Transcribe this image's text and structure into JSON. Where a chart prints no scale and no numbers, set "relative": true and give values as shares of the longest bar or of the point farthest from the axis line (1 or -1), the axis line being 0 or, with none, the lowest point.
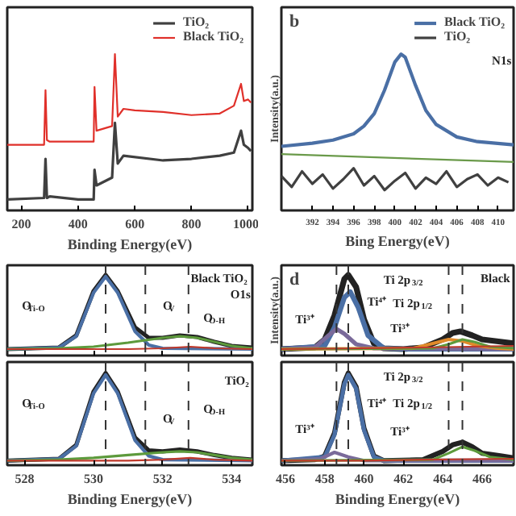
{
  "chart_data": [
    {
      "type": "line",
      "relative": true,
      "xlabel": "Binding Energy(eV)",
      "xlim": [
        150,
        1015
      ],
      "xticks": [
        200,
        400,
        600,
        800,
        1000
      ],
      "legend": "top right",
      "grid": false,
      "series": [
        {
          "name": "TiO₂",
          "color": "#404040",
          "x": [
            150,
            280,
            285,
            290,
            300,
            400,
            455,
            458,
            465,
            520,
            530,
            540,
            560,
            700,
            800,
            900,
            950,
            975,
            985,
            1000,
            1010
          ],
          "values": [
            0.07,
            0.08,
            0.33,
            0.08,
            0.09,
            0.07,
            0.07,
            0.26,
            0.16,
            0.21,
            0.56,
            0.3,
            0.35,
            0.32,
            0.33,
            0.35,
            0.37,
            0.51,
            0.42,
            0.4,
            0.38
          ]
        },
        {
          "name": "Black TiO₂",
          "color": "#e0302a",
          "x": [
            150,
            280,
            285,
            290,
            300,
            455,
            458,
            465,
            520,
            530,
            540,
            560,
            600,
            700,
            800,
            900,
            950,
            975,
            985,
            1000,
            1010
          ],
          "values": [
            0.42,
            0.42,
            0.77,
            0.45,
            0.44,
            0.44,
            0.79,
            0.51,
            0.54,
            1.0,
            0.6,
            0.65,
            0.64,
            0.63,
            0.61,
            0.62,
            0.67,
            0.81,
            0.7,
            0.71,
            0.69
          ]
        }
      ]
    },
    {
      "type": "line",
      "relative": true,
      "title": "b",
      "xlabel": "Bing Energy(eV)",
      "ylabel": "Intensity(a.u.)",
      "xlim": [
        389,
        411.5
      ],
      "xticks": [
        392,
        394,
        396,
        398,
        400,
        402,
        404,
        406,
        408,
        410
      ],
      "legend": "top right",
      "grid": false,
      "annotations": [
        "N1s"
      ],
      "series": [
        {
          "name": "Black TiO₂",
          "color": "#4a6fa5",
          "x": [
            389,
            392,
            394,
            396,
            397,
            398,
            399,
            400,
            400.6,
            401,
            402,
            403,
            404,
            406,
            408,
            411.5
          ],
          "values": [
            0.41,
            0.43,
            0.45,
            0.49,
            0.54,
            0.62,
            0.77,
            0.95,
            1.0,
            0.98,
            0.8,
            0.64,
            0.55,
            0.47,
            0.44,
            0.42
          ]
        },
        {
          "name": "TiO₂",
          "color": "#404040",
          "x": [
            389,
            390,
            391,
            392,
            393,
            394,
            395,
            396,
            397,
            398,
            399,
            400,
            401,
            402,
            403,
            404,
            405,
            406,
            407,
            408,
            409,
            410,
            411
          ],
          "values": [
            0.22,
            0.15,
            0.25,
            0.17,
            0.23,
            0.14,
            0.2,
            0.27,
            0.16,
            0.22,
            0.13,
            0.19,
            0.24,
            0.14,
            0.21,
            0.17,
            0.25,
            0.15,
            0.2,
            0.23,
            0.16,
            0.21,
            0.18
          ]
        },
        {
          "color": "#6a9a4a",
          "x": [
            389,
            411.5
          ],
          "values": [
            0.36,
            0.31
          ]
        }
      ]
    },
    {
      "type": "line",
      "relative": true,
      "xlim": [
        527.5,
        534.6
      ],
      "xticks": [
        528,
        530,
        532,
        534
      ],
      "tick_labels": false,
      "grid": false,
      "annotations": [
        "Black TiO₂",
        "O1s",
        "O$_{Ti-O}$",
        "O$_{V}$",
        "O$_{O-H}$"
      ],
      "ref_lines": [
        {
          "axis": "x",
          "value": 530.35,
          "color": "#333333",
          "line_style": "dashed"
        },
        {
          "axis": "x",
          "value": 531.5,
          "color": "#333333",
          "line_style": "dashed"
        },
        {
          "axis": "x",
          "value": 532.75,
          "color": "#333333",
          "line_style": "dashed"
        }
      ],
      "series": [
        {
          "color": "#222222",
          "x": [
            527.5,
            529,
            529.5,
            530,
            530.35,
            530.7,
            531.2,
            531.6,
            532,
            532.5,
            533,
            533.5,
            534,
            534.6
          ],
          "values": [
            0.08,
            0.1,
            0.25,
            0.8,
            1.0,
            0.8,
            0.35,
            0.22,
            0.22,
            0.25,
            0.23,
            0.17,
            0.12,
            0.1
          ]
        },
        {
          "color": "#4a6fa5",
          "x": [
            527.5,
            529,
            529.5,
            530,
            530.35,
            530.7,
            531.2,
            531.6,
            532,
            534.6
          ],
          "values": [
            0.08,
            0.1,
            0.24,
            0.78,
            0.98,
            0.78,
            0.3,
            0.13,
            0.09,
            0.08
          ]
        },
        {
          "color": "#5d9a3c",
          "x": [
            527.5,
            529,
            530,
            531,
            532,
            532.5,
            533,
            533.5,
            534,
            534.6
          ],
          "values": [
            0.08,
            0.09,
            0.11,
            0.16,
            0.22,
            0.24,
            0.22,
            0.17,
            0.12,
            0.09
          ]
        },
        {
          "color": "#c0392b",
          "x": [
            527.5,
            531,
            532,
            532.8,
            533.5,
            534.6
          ],
          "values": [
            0.08,
            0.08,
            0.09,
            0.11,
            0.09,
            0.08
          ]
        }
      ]
    },
    {
      "type": "line",
      "relative": true,
      "xlabel": "Binding Energy(eV)",
      "xlim": [
        527.5,
        534.6
      ],
      "xticks": [
        528,
        530,
        532,
        534
      ],
      "grid": false,
      "annotations": [
        "TiO₂",
        "O$_{Ti-O}$",
        "O$_{V}$",
        "O$_{O-H}$"
      ],
      "ref_lines": [
        {
          "axis": "x",
          "value": 530.35,
          "color": "#333333",
          "line_style": "dashed"
        },
        {
          "axis": "x",
          "value": 531.5,
          "color": "#333333",
          "line_style": "dashed"
        },
        {
          "axis": "x",
          "value": 532.75,
          "color": "#333333",
          "line_style": "dashed"
        }
      ],
      "series": [
        {
          "color": "#222222",
          "x": [
            527.5,
            529,
            529.5,
            530,
            530.35,
            530.7,
            531.2,
            531.6,
            532,
            532.5,
            533,
            533.5,
            534,
            534.6
          ],
          "values": [
            0.05,
            0.07,
            0.22,
            0.8,
            1.0,
            0.8,
            0.3,
            0.16,
            0.15,
            0.17,
            0.15,
            0.11,
            0.08,
            0.06
          ]
        },
        {
          "color": "#4a6fa5",
          "x": [
            527.5,
            529,
            529.5,
            530,
            530.35,
            530.7,
            531.2,
            531.6,
            532,
            534.6
          ],
          "values": [
            0.05,
            0.07,
            0.21,
            0.78,
            0.98,
            0.78,
            0.27,
            0.1,
            0.06,
            0.05
          ]
        },
        {
          "color": "#5d9a3c",
          "x": [
            527.5,
            529,
            530,
            531,
            532,
            532.5,
            533,
            533.5,
            534,
            534.6
          ],
          "values": [
            0.05,
            0.06,
            0.08,
            0.11,
            0.14,
            0.15,
            0.14,
            0.11,
            0.08,
            0.06
          ]
        },
        {
          "color": "#c0392b",
          "x": [
            527.5,
            531,
            532,
            532.8,
            533.5,
            534.6
          ],
          "values": [
            0.05,
            0.05,
            0.06,
            0.08,
            0.06,
            0.05
          ]
        }
      ]
    },
    {
      "type": "line",
      "relative": true,
      "title": "d",
      "ylabel": "Intensity(a.u.)",
      "xlim": [
        455.8,
        467.6
      ],
      "xticks": [
        456,
        458,
        460,
        462,
        464,
        466
      ],
      "tick_labels": false,
      "grid": false,
      "annotations": [
        "Black",
        "Ti 2p$_{3/2}$",
        "Ti⁴⁺",
        "Ti³⁺",
        "Ti 2p$_{1/2}$",
        "Ti³⁺"
      ],
      "ref_lines": [
        {
          "axis": "x",
          "value": 458.6,
          "color": "#333333",
          "line_style": "dashed"
        },
        {
          "axis": "x",
          "value": 459.2,
          "color": "#333333",
          "line_style": "dashed"
        },
        {
          "axis": "x",
          "value": 464.3,
          "color": "#333333",
          "line_style": "dashed"
        },
        {
          "axis": "x",
          "value": 465.0,
          "color": "#333333",
          "line_style": "dashed"
        }
      ],
      "series": [
        {
          "color": "#222222",
          "x": [
            455.8,
            457.5,
            458,
            458.5,
            459,
            459.2,
            459.6,
            460,
            460.5,
            461,
            462,
            463,
            464,
            464.5,
            464.9,
            465.5,
            466,
            467,
            467.6
          ],
          "values": [
            0.08,
            0.1,
            0.2,
            0.5,
            0.95,
            1.0,
            0.85,
            0.45,
            0.15,
            0.09,
            0.08,
            0.1,
            0.2,
            0.28,
            0.3,
            0.25,
            0.2,
            0.17,
            0.15
          ]
        },
        {
          "color": "#4a6fa5",
          "x": [
            455.8,
            458,
            458.5,
            459,
            459.3,
            459.7,
            460.2,
            461,
            462,
            467.6
          ],
          "values": [
            0.08,
            0.12,
            0.35,
            0.72,
            0.79,
            0.6,
            0.25,
            0.09,
            0.08,
            0.08
          ]
        },
        {
          "color": "#7a6a9a",
          "x": [
            455.8,
            457.5,
            458.2,
            458.6,
            459,
            459.6,
            460.5,
            467.6
          ],
          "values": [
            0.08,
            0.1,
            0.25,
            0.33,
            0.27,
            0.14,
            0.09,
            0.08
          ]
        },
        {
          "color": "#e08a2a",
          "x": [
            455.8,
            462.5,
            463.5,
            464.3,
            465,
            465.8,
            466.8,
            467.6
          ],
          "values": [
            0.08,
            0.09,
            0.15,
            0.2,
            0.18,
            0.12,
            0.09,
            0.08
          ]
        },
        {
          "color": "#5d9a3c",
          "x": [
            455.8,
            463.5,
            464.3,
            465,
            465.6,
            466.4,
            467.6
          ],
          "values": [
            0.08,
            0.09,
            0.14,
            0.2,
            0.17,
            0.11,
            0.09
          ]
        },
        {
          "color": "#c0392b",
          "x": [
            455.8,
            460,
            463,
            467.6
          ],
          "values": [
            0.08,
            0.09,
            0.1,
            0.12
          ]
        }
      ]
    },
    {
      "type": "line",
      "relative": true,
      "xlabel": "Binding Energy(eV)",
      "xlim": [
        455.8,
        467.6
      ],
      "xticks": [
        456,
        458,
        460,
        462,
        464,
        466
      ],
      "grid": false,
      "annotations": [
        "Ti 2p$_{3/2}$",
        "Ti⁴⁺",
        "Ti³⁺",
        "Ti 2p$_{1/2}$",
        "Ti³⁺"
      ],
      "ref_lines": [
        {
          "axis": "x",
          "value": 458.6,
          "color": "#333333",
          "line_style": "dashed"
        },
        {
          "axis": "x",
          "value": 459.2,
          "color": "#333333",
          "line_style": "dashed"
        },
        {
          "axis": "x",
          "value": 464.3,
          "color": "#333333",
          "line_style": "dashed"
        },
        {
          "axis": "x",
          "value": 465.0,
          "color": "#333333",
          "line_style": "dashed"
        }
      ],
      "series": [
        {
          "color": "#222222",
          "x": [
            455.8,
            457.5,
            458,
            458.5,
            459,
            459.2,
            459.6,
            460,
            460.5,
            461,
            463,
            464,
            464.5,
            465,
            465.5,
            466,
            467,
            467.6
          ],
          "values": [
            0.05,
            0.06,
            0.1,
            0.35,
            0.9,
            1.0,
            0.85,
            0.4,
            0.1,
            0.05,
            0.06,
            0.15,
            0.22,
            0.25,
            0.2,
            0.13,
            0.1,
            0.08
          ]
        },
        {
          "color": "#4a6fa5",
          "x": [
            455.8,
            458,
            458.5,
            459,
            459.2,
            459.6,
            460,
            460.5,
            461,
            467.6
          ],
          "values": [
            0.05,
            0.09,
            0.33,
            0.88,
            0.98,
            0.83,
            0.38,
            0.09,
            0.05,
            0.05
          ]
        },
        {
          "color": "#7a6a9a",
          "x": [
            455.8,
            457.8,
            458.5,
            459.2,
            460,
            467.6
          ],
          "values": [
            0.05,
            0.07,
            0.14,
            0.09,
            0.05,
            0.05
          ]
        },
        {
          "color": "#5d9a3c",
          "x": [
            455.8,
            463.5,
            464.3,
            465,
            465.6,
            466.4,
            467.6
          ],
          "values": [
            0.05,
            0.06,
            0.13,
            0.2,
            0.16,
            0.09,
            0.06
          ]
        },
        {
          "color": "#c0392b",
          "x": [
            455.8,
            460,
            463,
            467.6
          ],
          "values": [
            0.05,
            0.05,
            0.06,
            0.07
          ]
        }
      ]
    }
  ]
}
